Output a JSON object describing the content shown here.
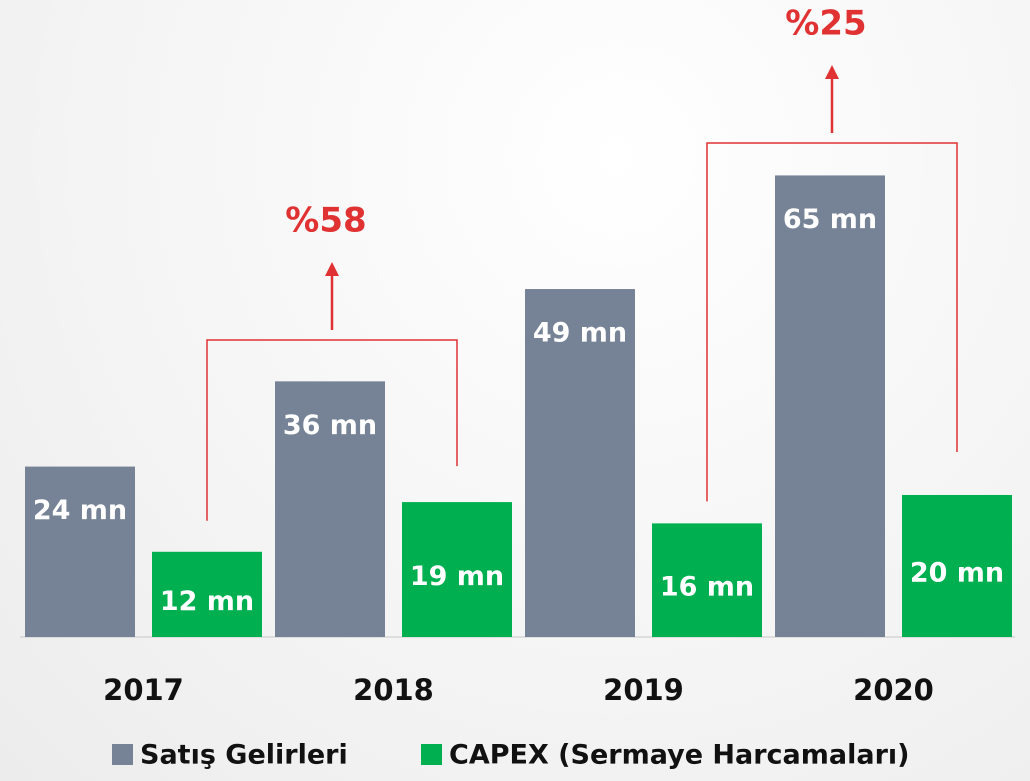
{
  "chart_data": {
    "type": "bar",
    "categories": [
      "2017",
      "2018",
      "2019",
      "2020"
    ],
    "series": [
      {
        "name": "Satış Gelirleri",
        "color": "#768396",
        "values": [
          24,
          36,
          49,
          65
        ],
        "value_labels": [
          "24 mn",
          "36 mn",
          "49 mn",
          "65 mn"
        ]
      },
      {
        "name": "CAPEX (Sermaye Harcamaları)",
        "color": "#00b050",
        "values": [
          12,
          19,
          16,
          20
        ],
        "value_labels": [
          "12 mn",
          "19 mn",
          "16 mn",
          "20 mn"
        ]
      }
    ],
    "ylim": [
      0,
      89
    ],
    "annotations": [
      "%58",
      "%25"
    ],
    "annotation_color": "#e03232"
  }
}
